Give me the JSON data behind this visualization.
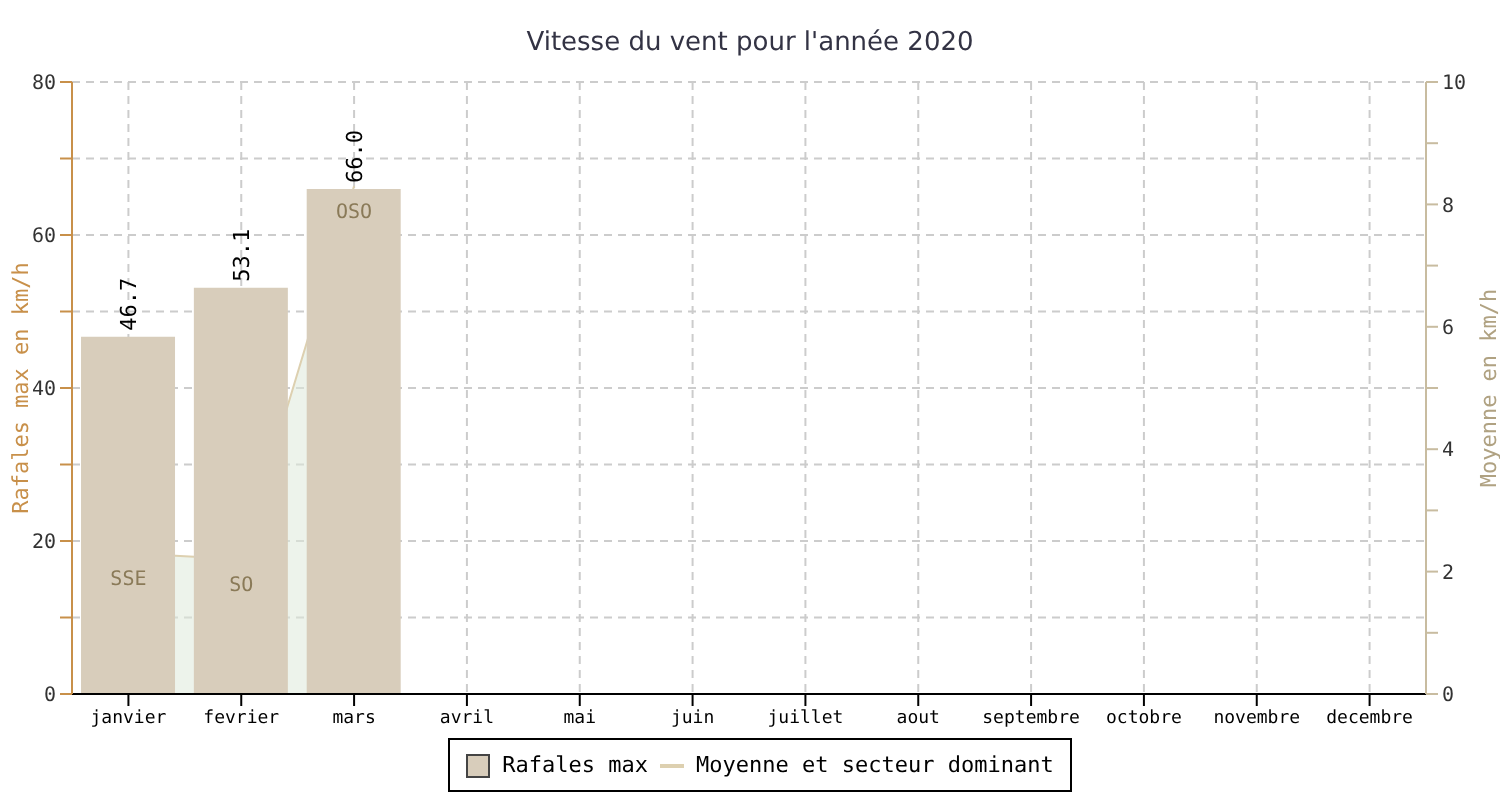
{
  "chart_data": {
    "type": "bar",
    "title": "Vitesse du vent pour l'année 2020",
    "ylabel": "Rafales max en km/h",
    "y2label": "Moyenne en km/h",
    "categories": [
      "janvier",
      "fevrier",
      "mars",
      "avril",
      "mai",
      "juin",
      "juillet",
      "aout",
      "septembre",
      "octobre",
      "novembre",
      "decembre"
    ],
    "series": [
      {
        "name": "Rafales max",
        "color": "#d8cdbb",
        "values": [
          46.7,
          53.1,
          66.0,
          null,
          null,
          null,
          null,
          null,
          null,
          null,
          null,
          null
        ],
        "value_labels": [
          "46.7",
          "53.1",
          "66.0",
          null,
          null,
          null,
          null,
          null,
          null,
          null,
          null,
          null
        ]
      },
      {
        "name": "Moyenne et secteur dominant",
        "type": "area",
        "axis": "y2",
        "color": "#ddd0b0",
        "values": [
          2.3,
          2.2,
          8.3,
          null,
          null,
          null,
          null,
          null,
          null,
          null,
          null,
          null
        ],
        "value_labels": [
          "SSE",
          "SO",
          "OSO",
          null,
          null,
          null,
          null,
          null,
          null,
          null,
          null,
          null
        ]
      }
    ],
    "ylim": [
      0,
      80
    ],
    "yticks": [
      0,
      {
        "value": 10,
        "label": null
      },
      20,
      {
        "value": 30,
        "label": null
      },
      40,
      {
        "value": 50,
        "label": null
      },
      60,
      {
        "value": 70,
        "label": null
      },
      80
    ],
    "y2lim": [
      0,
      10
    ],
    "y2ticks": [
      0,
      {
        "value": 1,
        "label": null
      },
      2,
      {
        "value": 3,
        "label": null
      },
      4,
      {
        "value": 5,
        "label": null
      },
      6,
      {
        "value": 7,
        "label": null
      },
      8,
      {
        "value": 9,
        "label": null
      },
      10
    ],
    "grid": true,
    "legend": "bottom"
  }
}
